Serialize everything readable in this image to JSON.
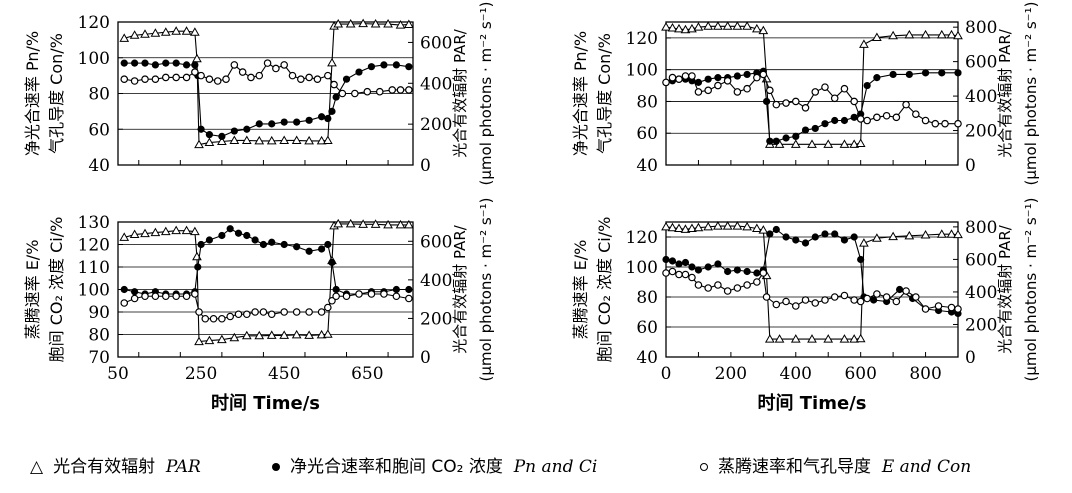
{
  "chart_data": [
    {
      "type": "line",
      "panel": "top-left",
      "ylabel_left": [
        "净光合速率 Pn/%",
        "气孔导度 Con/%"
      ],
      "ylabel_right": [
        "光合有效辐射 PAR/",
        "(μmol photons · m⁻² s⁻¹)"
      ],
      "xlim": [
        50,
        760
      ],
      "ylim_left": [
        40,
        120
      ],
      "ylim_right": [
        0,
        700
      ],
      "yticks_left": [
        "40",
        "60",
        "80",
        "100",
        "120"
      ],
      "yticks_right": [
        "0",
        "200",
        "400",
        "600"
      ],
      "xticks": [],
      "series": [
        {
          "name": "PAR",
          "marker": "triangle",
          "axis": "right",
          "x": [
            65,
            90,
            115,
            140,
            165,
            190,
            215,
            235,
            240,
            245,
            270,
            300,
            330,
            360,
            390,
            420,
            450,
            480,
            510,
            540,
            555,
            565,
            570,
            580,
            610,
            640,
            670,
            700,
            730,
            750
          ],
          "y": [
            620,
            635,
            640,
            645,
            650,
            655,
            655,
            650,
            520,
            100,
            110,
            115,
            120,
            120,
            118,
            118,
            120,
            120,
            118,
            118,
            120,
            500,
            680,
            690,
            690,
            692,
            690,
            690,
            685,
            688
          ]
        },
        {
          "name": "Pn",
          "marker": "filled",
          "axis": "left",
          "x": [
            65,
            90,
            115,
            140,
            165,
            190,
            215,
            235,
            242,
            250,
            270,
            300,
            330,
            360,
            390,
            420,
            450,
            480,
            510,
            540,
            555,
            565,
            575,
            600,
            630,
            660,
            690,
            720,
            750
          ],
          "y": [
            97,
            97,
            97,
            96,
            97,
            97,
            96,
            96,
            90,
            60,
            57,
            56,
            59,
            60,
            63,
            63,
            64,
            64,
            65,
            67,
            66,
            70,
            78,
            88,
            92,
            95,
            96,
            96,
            95
          ]
        },
        {
          "name": "Con",
          "marker": "open",
          "axis": "left",
          "x": [
            65,
            90,
            115,
            140,
            165,
            190,
            215,
            235,
            250,
            270,
            290,
            310,
            330,
            350,
            370,
            390,
            410,
            430,
            450,
            470,
            490,
            510,
            530,
            555,
            570,
            590,
            620,
            650,
            680,
            710,
            730,
            750
          ],
          "y": [
            88,
            87,
            88,
            88,
            89,
            89,
            89,
            92,
            90,
            88,
            87,
            88,
            96,
            92,
            89,
            90,
            97,
            94,
            96,
            90,
            88,
            89,
            88,
            90,
            85,
            80,
            80,
            81,
            81,
            82,
            82,
            82
          ]
        }
      ]
    },
    {
      "type": "line",
      "panel": "top-right",
      "ylabel_left": [
        "净光合速率 Pn/%",
        "气孔导度 Con/%"
      ],
      "ylabel_right": [
        "光合有效辐射 PAR/",
        "(μmol photons · m⁻² s⁻¹)"
      ],
      "xlim": [
        0,
        900
      ],
      "ylim_left": [
        40,
        130
      ],
      "ylim_right": [
        0,
        830
      ],
      "yticks_left": [
        "40",
        "60",
        "80",
        "100",
        "120"
      ],
      "yticks_right": [
        "0",
        "200",
        "400",
        "600",
        "800"
      ],
      "xticks": [],
      "series": [
        {
          "name": "PAR",
          "marker": "triangle",
          "axis": "right",
          "x": [
            0,
            20,
            40,
            60,
            80,
            100,
            130,
            160,
            190,
            220,
            250,
            280,
            300,
            310,
            320,
            350,
            400,
            450,
            500,
            550,
            580,
            600,
            610,
            650,
            700,
            750,
            800,
            850,
            880,
            900
          ],
          "y": [
            800,
            795,
            790,
            785,
            790,
            800,
            805,
            805,
            805,
            805,
            805,
            790,
            780,
            500,
            120,
            120,
            120,
            120,
            120,
            120,
            120,
            125,
            700,
            740,
            750,
            755,
            755,
            755,
            755,
            750
          ]
        },
        {
          "name": "Pn",
          "marker": "filled",
          "axis": "left",
          "x": [
            0,
            20,
            40,
            60,
            80,
            100,
            130,
            160,
            190,
            220,
            250,
            280,
            300,
            310,
            320,
            340,
            370,
            400,
            430,
            460,
            490,
            520,
            550,
            580,
            600,
            620,
            650,
            700,
            750,
            800,
            850,
            900
          ],
          "y": [
            92,
            93,
            94,
            94,
            93,
            92,
            94,
            95,
            95,
            96,
            97,
            98,
            99,
            80,
            55,
            55,
            57,
            58,
            62,
            63,
            66,
            68,
            68,
            70,
            72,
            90,
            95,
            97,
            97,
            98,
            98,
            98
          ]
        },
        {
          "name": "Con",
          "marker": "open",
          "axis": "left",
          "x": [
            0,
            20,
            40,
            60,
            80,
            100,
            130,
            160,
            190,
            220,
            250,
            280,
            300,
            320,
            340,
            370,
            400,
            430,
            460,
            490,
            520,
            550,
            580,
            600,
            620,
            650,
            680,
            710,
            740,
            770,
            800,
            830,
            860,
            900
          ],
          "y": [
            92,
            95,
            94,
            96,
            96,
            86,
            87,
            90,
            93,
            86,
            88,
            95,
            97,
            87,
            78,
            79,
            80,
            76,
            86,
            89,
            82,
            88,
            80,
            69,
            68,
            70,
            71,
            70,
            78,
            72,
            68,
            66,
            66,
            66
          ]
        }
      ]
    },
    {
      "type": "line",
      "panel": "bottom-left",
      "ylabel_left": [
        "蒸腾速率 E/%",
        "胞间 CO₂ 浓度 Ci/%"
      ],
      "ylabel_right": [
        "光合有效辐射 PAR/",
        "(μmol photons · m⁻² s⁻¹)"
      ],
      "xlim": [
        50,
        760
      ],
      "ylim_left": [
        70,
        130
      ],
      "ylim_right": [
        0,
        700
      ],
      "yticks_left": [
        "70",
        "80",
        "90",
        "100",
        "110",
        "120",
        "130"
      ],
      "yticks_right": [
        "0",
        "200",
        "400",
        "600"
      ],
      "xticks": [
        "50",
        "250",
        "450",
        "650"
      ],
      "xlabel": "时间    Time/s",
      "series": [
        {
          "name": "PAR",
          "marker": "triangle",
          "axis": "right",
          "x": [
            65,
            90,
            115,
            140,
            165,
            190,
            215,
            235,
            240,
            245,
            270,
            300,
            330,
            360,
            390,
            420,
            450,
            480,
            510,
            540,
            555,
            565,
            570,
            580,
            610,
            640,
            670,
            700,
            730,
            750
          ],
          "y": [
            620,
            635,
            640,
            645,
            650,
            655,
            655,
            650,
            520,
            80,
            85,
            90,
            100,
            110,
            110,
            112,
            112,
            115,
            112,
            115,
            118,
            500,
            680,
            690,
            690,
            688,
            688,
            685,
            685,
            685
          ]
        },
        {
          "name": "Ci",
          "marker": "filled",
          "axis": "left",
          "x": [
            65,
            90,
            115,
            140,
            165,
            190,
            215,
            235,
            242,
            250,
            270,
            300,
            320,
            340,
            360,
            380,
            400,
            420,
            450,
            480,
            510,
            540,
            555,
            565,
            575,
            600,
            630,
            660,
            690,
            720,
            750
          ],
          "y": [
            100,
            99,
            98,
            99,
            98,
            98,
            98,
            99,
            110,
            120,
            122,
            124,
            127,
            125,
            124,
            122,
            120,
            121,
            120,
            119,
            117,
            118,
            120,
            112,
            100,
            98,
            98,
            99,
            99,
            100,
            100
          ]
        },
        {
          "name": "E",
          "marker": "open",
          "axis": "left",
          "x": [
            65,
            90,
            115,
            140,
            165,
            190,
            215,
            235,
            245,
            260,
            280,
            300,
            320,
            340,
            360,
            380,
            400,
            420,
            450,
            480,
            510,
            540,
            555,
            565,
            575,
            600,
            630,
            660,
            690,
            720,
            750
          ],
          "y": [
            94,
            96,
            97,
            97,
            97,
            97,
            97,
            98,
            90,
            87,
            87,
            87,
            88,
            89,
            89,
            90,
            90,
            89,
            90,
            90,
            90,
            90,
            92,
            95,
            97,
            97,
            98,
            98,
            98,
            97,
            96
          ]
        }
      ]
    },
    {
      "type": "line",
      "panel": "bottom-right",
      "ylabel_left": [
        "蒸腾速率 E/%",
        "胞间 CO₂ 浓度 Ci/%"
      ],
      "ylabel_right": [
        "光合有效辐射 PAR/",
        "(μmol photons · m⁻² s⁻¹)"
      ],
      "xlim": [
        0,
        900
      ],
      "ylim_left": [
        40,
        130
      ],
      "ylim_right": [
        0,
        830
      ],
      "yticks_left": [
        "40",
        "60",
        "80",
        "100",
        "120"
      ],
      "yticks_right": [
        "0",
        "200",
        "400",
        "600",
        "800"
      ],
      "xticks": [
        "0",
        "200",
        "400",
        "600",
        "800"
      ],
      "xlabel": "时间    Time/s",
      "series": [
        {
          "name": "PAR",
          "marker": "triangle",
          "axis": "right",
          "x": [
            0,
            20,
            40,
            60,
            80,
            100,
            130,
            160,
            190,
            220,
            250,
            280,
            300,
            310,
            320,
            350,
            400,
            450,
            500,
            550,
            580,
            600,
            610,
            650,
            700,
            750,
            800,
            850,
            880,
            900
          ],
          "y": [
            800,
            795,
            790,
            785,
            790,
            795,
            800,
            805,
            805,
            805,
            800,
            790,
            780,
            500,
            110,
            110,
            110,
            110,
            110,
            110,
            110,
            112,
            700,
            730,
            740,
            745,
            750,
            755,
            755,
            752
          ]
        },
        {
          "name": "Ci",
          "marker": "filled",
          "axis": "left",
          "x": [
            0,
            20,
            40,
            60,
            80,
            100,
            130,
            160,
            190,
            220,
            250,
            280,
            300,
            320,
            340,
            370,
            400,
            430,
            460,
            490,
            520,
            550,
            580,
            600,
            610,
            640,
            680,
            720,
            760,
            800,
            840,
            880,
            900
          ],
          "y": [
            105,
            104,
            102,
            103,
            100,
            98,
            100,
            102,
            97,
            98,
            97,
            96,
            98,
            122,
            125,
            120,
            118,
            116,
            120,
            122,
            122,
            118,
            120,
            105,
            80,
            78,
            77,
            85,
            79,
            72,
            71,
            70,
            69
          ]
        },
        {
          "name": "E",
          "marker": "open",
          "axis": "left",
          "x": [
            0,
            20,
            40,
            60,
            80,
            100,
            130,
            160,
            190,
            220,
            250,
            280,
            300,
            310,
            340,
            370,
            400,
            430,
            460,
            490,
            520,
            550,
            580,
            600,
            620,
            650,
            680,
            710,
            740,
            770,
            800,
            840,
            880,
            900
          ],
          "y": [
            96,
            97,
            95,
            95,
            93,
            88,
            86,
            88,
            84,
            86,
            88,
            90,
            96,
            80,
            75,
            77,
            74,
            78,
            76,
            78,
            80,
            81,
            78,
            77,
            79,
            82,
            80,
            77,
            84,
            80,
            72,
            74,
            73,
            72
          ]
        }
      ]
    }
  ],
  "legend": {
    "par": {
      "cn": "光合有效辐射",
      "en": "PAR"
    },
    "pn_ci": {
      "cn": "净光合速率和胞间 CO₂ 浓度",
      "en": "Pn and Ci"
    },
    "e_con": {
      "cn": "蒸腾速率和气孔导度",
      "en": "E and Con"
    }
  }
}
